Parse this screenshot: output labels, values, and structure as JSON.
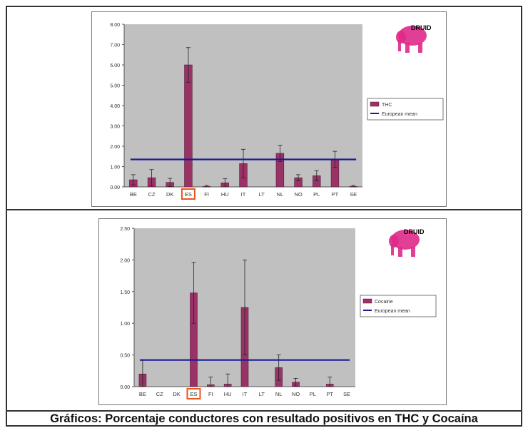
{
  "caption": "Gráficos: Porcentaje conductores con resultado positivos en THC y Cocaína",
  "colors": {
    "bar": "#993366",
    "mean": "#1a1a9a",
    "plot_bg": "#c0c0c0",
    "highlight": "#e8561c",
    "logo": "#e0298a"
  },
  "logo_text": "DRUID",
  "chart_data": [
    {
      "type": "bar",
      "categories": [
        "BE",
        "CZ",
        "DK",
        "ES",
        "FI",
        "HU",
        "IT",
        "LT",
        "NL",
        "NO",
        "PL",
        "PT",
        "SE"
      ],
      "highlight_category": "ES",
      "series": [
        {
          "name": "THC",
          "values": [
            0.35,
            0.45,
            0.22,
            6.0,
            0.02,
            0.2,
            1.15,
            0.0,
            1.65,
            0.45,
            0.55,
            1.35,
            0.02
          ],
          "err": [
            0.25,
            0.4,
            0.2,
            0.85,
            0.05,
            0.2,
            0.7,
            0.0,
            0.4,
            0.15,
            0.25,
            0.4,
            0.05
          ]
        },
        {
          "name": "European mean",
          "type": "line",
          "value": 1.35
        }
      ],
      "yticks": [
        "0.00",
        "1.00",
        "2.00",
        "3.00",
        "4.00",
        "5.00",
        "6.00",
        "7.00",
        "8.00"
      ],
      "ylim": [
        0,
        8
      ],
      "legend": [
        "THC",
        "European mean"
      ],
      "legend_position": "right"
    },
    {
      "type": "bar",
      "categories": [
        "BE",
        "CZ",
        "DK",
        "ES",
        "FI",
        "HU",
        "IT",
        "LT",
        "NL",
        "NO",
        "PL",
        "PT",
        "SE"
      ],
      "highlight_category": "ES",
      "series": [
        {
          "name": "Cocaine",
          "values": [
            0.2,
            0.0,
            0.0,
            1.48,
            0.03,
            0.04,
            1.25,
            0.0,
            0.3,
            0.07,
            0.0,
            0.04,
            0.0
          ],
          "err": [
            0.22,
            0.0,
            0.0,
            0.48,
            0.12,
            0.16,
            0.75,
            0.0,
            0.2,
            0.06,
            0.0,
            0.11,
            0.0
          ]
        },
        {
          "name": "European mean",
          "type": "line",
          "value": 0.42
        }
      ],
      "yticks": [
        "0.00",
        "0.50",
        "1.00",
        "1.50",
        "2.00",
        "2.50"
      ],
      "ylim": [
        0,
        2.5
      ],
      "legend": [
        "Cocaine",
        "European mean"
      ],
      "legend_position": "right"
    }
  ]
}
